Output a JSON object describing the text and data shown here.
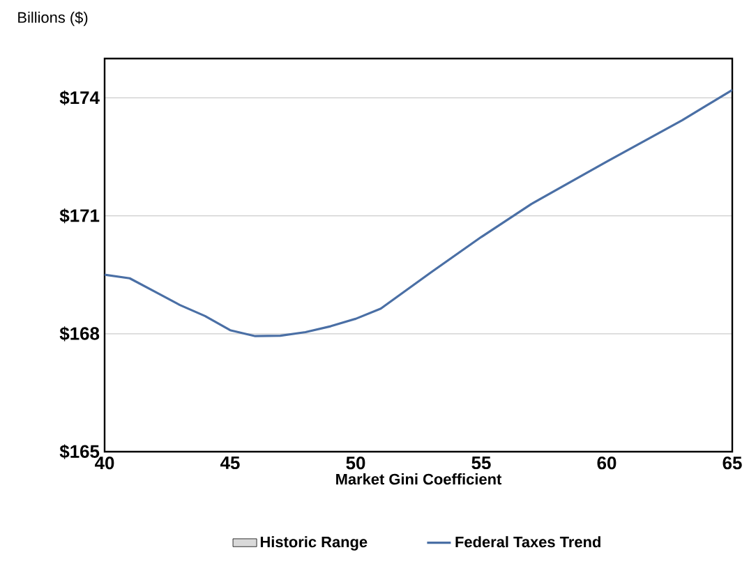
{
  "chart_data": {
    "type": "line",
    "xlabel": "Market Gini Coefficient",
    "ylabel": "Billions ($)",
    "x": [
      40,
      41,
      42,
      43,
      44,
      45,
      46,
      47,
      48,
      49,
      50,
      51,
      53,
      55,
      57,
      60,
      63,
      65
    ],
    "series": [
      {
        "name": "Historic Range",
        "type": "area",
        "color": "#d9d9d9",
        "values": [
          null,
          null,
          null,
          null,
          null,
          null,
          null,
          null,
          null,
          null,
          null,
          null,
          null,
          null,
          null,
          null,
          null,
          null
        ]
      },
      {
        "name": "Federal Taxes Trend",
        "color": "#4a6fa5",
        "values": [
          169.5,
          169.41,
          169.07,
          168.73,
          168.45,
          168.09,
          167.94,
          167.95,
          168.04,
          168.19,
          168.38,
          168.64,
          169.56,
          170.46,
          171.3,
          172.38,
          173.43,
          174.2
        ]
      }
    ],
    "xlim": [
      40,
      65
    ],
    "xticks": [
      40,
      45,
      50,
      55,
      60,
      65
    ],
    "ylim": [
      165,
      175
    ],
    "yticks": [
      {
        "value": 165,
        "label": "$165"
      },
      {
        "value": 168,
        "label": "$168"
      },
      {
        "value": 171,
        "label": "$171"
      },
      {
        "value": 174,
        "label": "$174"
      }
    ],
    "grid": "y",
    "legend": "bottom",
    "marker": "none",
    "line_style": "solid"
  }
}
